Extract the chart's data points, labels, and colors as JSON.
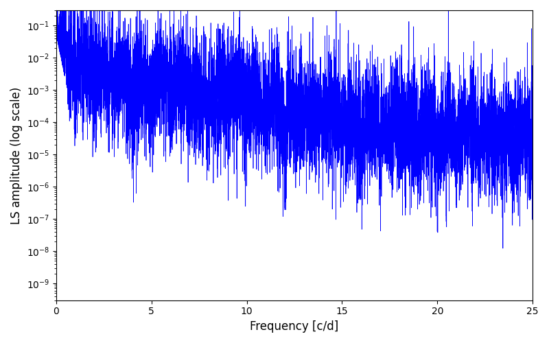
{
  "line_color": "#0000FF",
  "xlabel": "Frequency [c/d]",
  "ylabel": "LS amplitude (log scale)",
  "xlim": [
    0,
    25
  ],
  "ylim": [
    3e-10,
    0.3
  ],
  "yscale": "log",
  "figsize": [
    8.0,
    5.0
  ],
  "dpi": 100,
  "line_width": 0.5,
  "freq_min": 0.001,
  "freq_max": 25.0,
  "n_points": 8000,
  "seed": 77
}
